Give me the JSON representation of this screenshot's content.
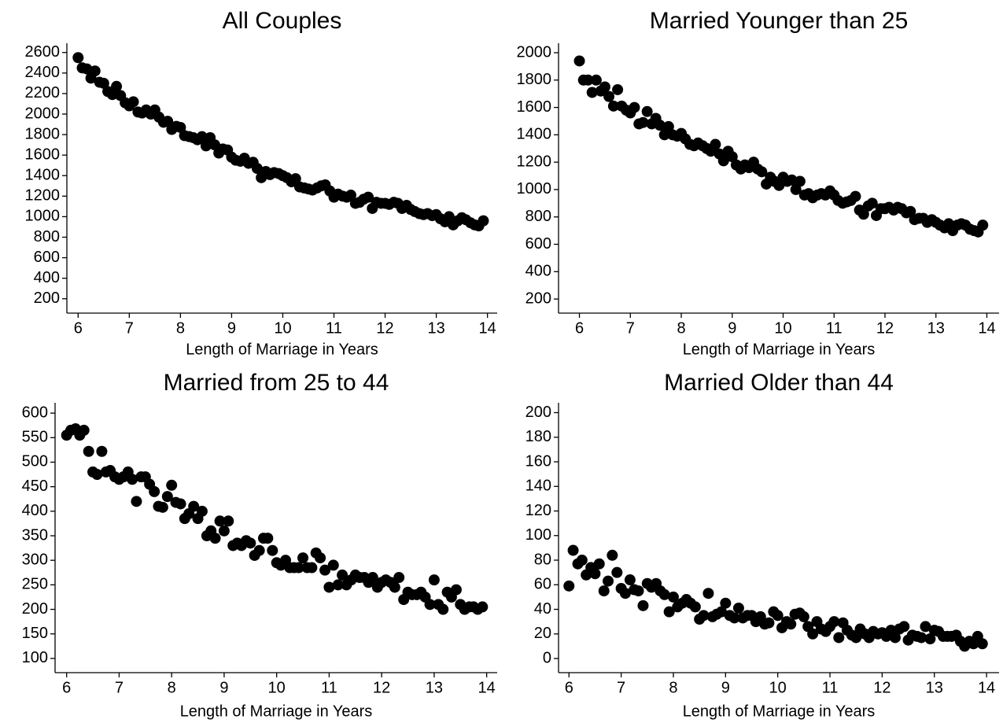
{
  "chart_data": [
    {
      "type": "scatter",
      "title": "All Couples",
      "xlabel": "Length of Marriage in Years",
      "color": "#000000",
      "xlim": [
        5.78,
        14.19
      ],
      "ylim": [
        60,
        2690
      ],
      "xticks": [
        6,
        7,
        8,
        9,
        10,
        11,
        12,
        13,
        14
      ],
      "yticks": [
        200,
        400,
        600,
        800,
        1000,
        1200,
        1400,
        1600,
        1800,
        2000,
        2200,
        2400,
        2600
      ],
      "x": [
        6,
        6.08,
        6.17,
        6.25,
        6.33,
        6.42,
        6.5,
        6.58,
        6.67,
        6.75,
        6.83,
        6.92,
        7,
        7.08,
        7.17,
        7.25,
        7.33,
        7.42,
        7.5,
        7.58,
        7.67,
        7.75,
        7.83,
        7.92,
        8,
        8.08,
        8.17,
        8.25,
        8.33,
        8.42,
        8.5,
        8.58,
        8.67,
        8.75,
        8.83,
        8.92,
        9,
        9.08,
        9.17,
        9.25,
        9.33,
        9.42,
        9.5,
        9.58,
        9.67,
        9.75,
        9.83,
        9.92,
        10,
        10.08,
        10.17,
        10.25,
        10.33,
        10.42,
        10.5,
        10.58,
        10.67,
        10.75,
        10.83,
        10.92,
        11,
        11.08,
        11.17,
        11.25,
        11.33,
        11.42,
        11.5,
        11.58,
        11.67,
        11.75,
        11.83,
        11.92,
        12,
        12.08,
        12.17,
        12.25,
        12.33,
        12.42,
        12.5,
        12.58,
        12.67,
        12.75,
        12.83,
        12.92,
        13,
        13.08,
        13.17,
        13.25,
        13.33,
        13.42,
        13.5,
        13.58,
        13.67,
        13.75,
        13.83,
        13.92
      ],
      "values": [
        2550,
        2450,
        2440,
        2350,
        2420,
        2310,
        2300,
        2220,
        2190,
        2270,
        2180,
        2110,
        2080,
        2120,
        2020,
        2010,
        2040,
        2000,
        2040,
        1970,
        1920,
        1930,
        1850,
        1880,
        1870,
        1790,
        1780,
        1770,
        1750,
        1780,
        1690,
        1770,
        1700,
        1620,
        1660,
        1650,
        1580,
        1550,
        1540,
        1570,
        1520,
        1530,
        1470,
        1380,
        1440,
        1410,
        1430,
        1420,
        1400,
        1380,
        1340,
        1370,
        1290,
        1280,
        1270,
        1260,
        1280,
        1300,
        1310,
        1250,
        1190,
        1220,
        1200,
        1190,
        1210,
        1130,
        1140,
        1170,
        1190,
        1080,
        1140,
        1130,
        1130,
        1120,
        1140,
        1130,
        1080,
        1110,
        1070,
        1050,
        1030,
        1020,
        1030,
        1010,
        1020,
        980,
        950,
        1000,
        920,
        960,
        990,
        970,
        940,
        920,
        910,
        960
      ]
    },
    {
      "type": "scatter",
      "title": "Married Younger than 25",
      "xlabel": "Length of Marriage in Years",
      "color": "#000000",
      "xlim": [
        5.59,
        14.24
      ],
      "ylim": [
        97,
        2069
      ],
      "xticks": [
        6,
        7,
        8,
        9,
        10,
        11,
        12,
        13,
        14
      ],
      "yticks": [
        200,
        400,
        600,
        800,
        1000,
        1200,
        1400,
        1600,
        1800,
        2000
      ],
      "x": [
        6,
        6.08,
        6.17,
        6.25,
        6.33,
        6.42,
        6.5,
        6.58,
        6.67,
        6.75,
        6.83,
        6.92,
        7,
        7.08,
        7.17,
        7.25,
        7.33,
        7.42,
        7.5,
        7.58,
        7.67,
        7.75,
        7.83,
        7.92,
        8,
        8.08,
        8.17,
        8.25,
        8.33,
        8.42,
        8.5,
        8.58,
        8.67,
        8.75,
        8.83,
        8.92,
        9,
        9.08,
        9.17,
        9.25,
        9.33,
        9.42,
        9.5,
        9.58,
        9.67,
        9.75,
        9.83,
        9.92,
        10,
        10.08,
        10.17,
        10.25,
        10.33,
        10.42,
        10.5,
        10.58,
        10.67,
        10.75,
        10.83,
        10.92,
        11,
        11.08,
        11.17,
        11.25,
        11.33,
        11.42,
        11.5,
        11.58,
        11.67,
        11.75,
        11.83,
        11.92,
        12,
        12.08,
        12.17,
        12.25,
        12.33,
        12.42,
        12.5,
        12.58,
        12.67,
        12.75,
        12.83,
        12.92,
        13,
        13.08,
        13.17,
        13.25,
        13.33,
        13.42,
        13.5,
        13.58,
        13.67,
        13.75,
        13.83,
        13.92
      ],
      "values": [
        1940,
        1800,
        1800,
        1710,
        1800,
        1720,
        1750,
        1680,
        1610,
        1730,
        1610,
        1580,
        1560,
        1600,
        1480,
        1490,
        1570,
        1480,
        1520,
        1470,
        1400,
        1460,
        1400,
        1390,
        1410,
        1370,
        1330,
        1320,
        1340,
        1320,
        1300,
        1280,
        1330,
        1260,
        1210,
        1280,
        1240,
        1180,
        1150,
        1180,
        1160,
        1200,
        1150,
        1130,
        1040,
        1090,
        1060,
        1030,
        1090,
        1060,
        1070,
        1000,
        1060,
        960,
        970,
        940,
        960,
        970,
        960,
        990,
        960,
        920,
        900,
        910,
        920,
        950,
        850,
        820,
        880,
        900,
        810,
        860,
        860,
        870,
        850,
        870,
        860,
        830,
        840,
        780,
        790,
        790,
        760,
        780,
        760,
        740,
        720,
        750,
        700,
        740,
        750,
        740,
        710,
        700,
        690,
        740
      ]
    },
    {
      "type": "scatter",
      "title": "Married from 25 to 44",
      "xlabel": "Length of Marriage in Years",
      "color": "#000000",
      "xlim": [
        5.78,
        14.2
      ],
      "ylim": [
        71,
        621
      ],
      "xticks": [
        6,
        7,
        8,
        9,
        10,
        11,
        12,
        13,
        14
      ],
      "yticks": [
        100,
        150,
        200,
        250,
        300,
        350,
        400,
        450,
        500,
        550,
        600
      ],
      "x": [
        6,
        6.08,
        6.17,
        6.25,
        6.33,
        6.42,
        6.5,
        6.58,
        6.67,
        6.75,
        6.83,
        6.92,
        7,
        7.08,
        7.17,
        7.25,
        7.33,
        7.42,
        7.5,
        7.58,
        7.67,
        7.75,
        7.83,
        7.92,
        8,
        8.08,
        8.17,
        8.25,
        8.33,
        8.42,
        8.5,
        8.58,
        8.67,
        8.75,
        8.83,
        8.92,
        9,
        9.08,
        9.17,
        9.25,
        9.33,
        9.42,
        9.5,
        9.58,
        9.67,
        9.75,
        9.83,
        9.92,
        10,
        10.08,
        10.17,
        10.25,
        10.33,
        10.42,
        10.5,
        10.58,
        10.67,
        10.75,
        10.83,
        10.92,
        11,
        11.08,
        11.17,
        11.25,
        11.33,
        11.42,
        11.5,
        11.58,
        11.67,
        11.75,
        11.83,
        11.92,
        12,
        12.08,
        12.17,
        12.25,
        12.33,
        12.42,
        12.5,
        12.58,
        12.67,
        12.75,
        12.83,
        12.92,
        13,
        13.08,
        13.17,
        13.25,
        13.33,
        13.42,
        13.5,
        13.58,
        13.67,
        13.75,
        13.83,
        13.92
      ],
      "values": [
        555,
        565,
        568,
        555,
        565,
        522,
        480,
        475,
        522,
        480,
        483,
        470,
        465,
        470,
        480,
        465,
        420,
        470,
        470,
        455,
        440,
        410,
        408,
        430,
        453,
        418,
        415,
        385,
        395,
        410,
        385,
        400,
        350,
        360,
        345,
        380,
        360,
        380,
        330,
        335,
        330,
        340,
        335,
        310,
        320,
        345,
        345,
        320,
        295,
        290,
        300,
        285,
        285,
        285,
        305,
        285,
        285,
        315,
        305,
        280,
        245,
        290,
        250,
        270,
        250,
        260,
        270,
        265,
        265,
        255,
        265,
        245,
        255,
        260,
        255,
        245,
        265,
        220,
        235,
        230,
        230,
        235,
        225,
        210,
        260,
        210,
        200,
        235,
        225,
        240,
        210,
        200,
        205,
        205,
        200,
        205
      ]
    },
    {
      "type": "scatter",
      "title": "Married Older than 44",
      "xlabel": "Length of Marriage in Years",
      "color": "#000000",
      "xlim": [
        5.8,
        14.24
      ],
      "ylim": [
        -11.5,
        208
      ],
      "xticks": [
        6,
        7,
        8,
        9,
        10,
        11,
        12,
        13,
        14
      ],
      "yticks": [
        0,
        20,
        40,
        60,
        80,
        100,
        120,
        140,
        160,
        180,
        200
      ],
      "x": [
        6,
        6.08,
        6.17,
        6.25,
        6.33,
        6.42,
        6.5,
        6.58,
        6.67,
        6.75,
        6.83,
        6.92,
        7,
        7.08,
        7.17,
        7.25,
        7.33,
        7.42,
        7.5,
        7.58,
        7.67,
        7.75,
        7.83,
        7.92,
        8,
        8.08,
        8.17,
        8.25,
        8.33,
        8.42,
        8.5,
        8.58,
        8.67,
        8.75,
        8.83,
        8.92,
        9,
        9.08,
        9.17,
        9.25,
        9.33,
        9.42,
        9.5,
        9.58,
        9.67,
        9.75,
        9.83,
        9.92,
        10,
        10.08,
        10.17,
        10.25,
        10.33,
        10.42,
        10.5,
        10.58,
        10.67,
        10.75,
        10.83,
        10.92,
        11,
        11.08,
        11.17,
        11.25,
        11.33,
        11.42,
        11.5,
        11.58,
        11.67,
        11.75,
        11.83,
        11.92,
        12,
        12.08,
        12.17,
        12.25,
        12.33,
        12.42,
        12.5,
        12.58,
        12.67,
        12.75,
        12.83,
        12.92,
        13,
        13.08,
        13.17,
        13.25,
        13.33,
        13.42,
        13.5,
        13.58,
        13.67,
        13.75,
        13.83,
        13.92
      ],
      "values": [
        59,
        88,
        77,
        80,
        68,
        74,
        69,
        77,
        55,
        63,
        84,
        70,
        57,
        53,
        64,
        56,
        55,
        43,
        61,
        58,
        61,
        55,
        52,
        38,
        50,
        42,
        45,
        48,
        45,
        42,
        32,
        35,
        53,
        34,
        36,
        38,
        45,
        35,
        33,
        41,
        33,
        35,
        35,
        30,
        34,
        28,
        29,
        38,
        35,
        25,
        30,
        28,
        36,
        37,
        34,
        26,
        20,
        30,
        24,
        22,
        26,
        30,
        17,
        29,
        23,
        19,
        17,
        24,
        20,
        17,
        22,
        20,
        21,
        18,
        23,
        17,
        24,
        26,
        15,
        19,
        18,
        17,
        26,
        16,
        23,
        22,
        18,
        18,
        18,
        19,
        14,
        10,
        14,
        12,
        18,
        12
      ]
    }
  ]
}
